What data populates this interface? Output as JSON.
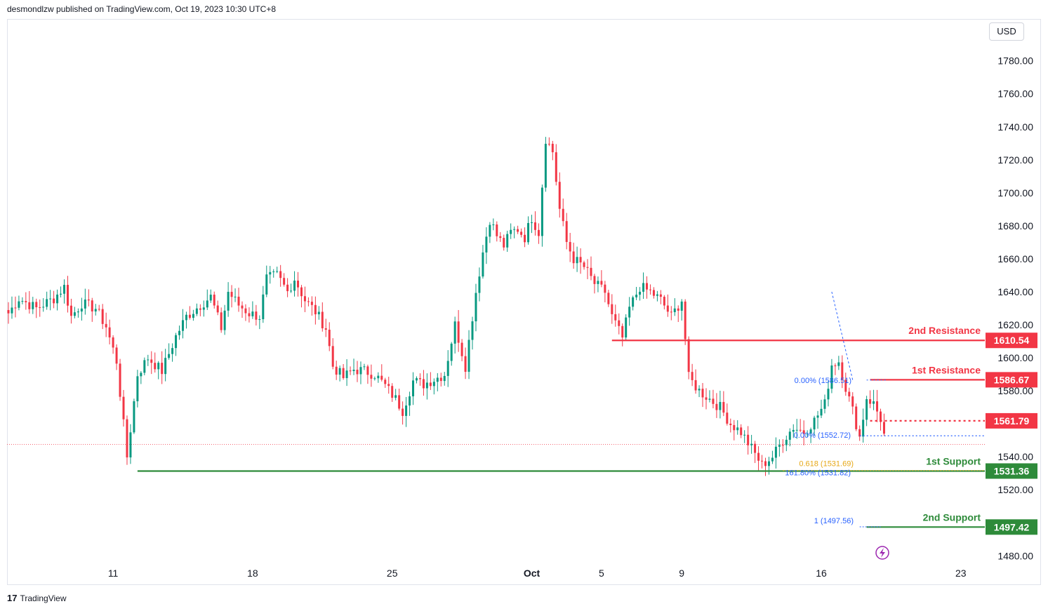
{
  "header": {
    "published": "desmondlzw published on TradingView.com, Oct 19, 2023 10:30 UTC+8"
  },
  "currency_button": "USD",
  "footer": {
    "brand": "TradingView",
    "logo_glyph": "17"
  },
  "colors": {
    "up": "#089981",
    "down": "#f23645",
    "resistance": "#f23645",
    "support": "#2e8b3a",
    "fib": "#2962ff",
    "fib_gold": "#e6a817"
  },
  "chart_data": {
    "type": "candlestick",
    "ylim": [
      1475,
      1800
    ],
    "y_ticks": [
      "1780.00",
      "1760.00",
      "1740.00",
      "1720.00",
      "1700.00",
      "1680.00",
      "1660.00",
      "1640.00",
      "1620.00",
      "1600.00",
      "1580.00",
      "1540.00",
      "1520.00",
      "1480.00"
    ],
    "y_tick_values": [
      1780,
      1760,
      1740,
      1720,
      1700,
      1680,
      1660,
      1640,
      1620,
      1600,
      1580,
      1540,
      1520,
      1480
    ],
    "x_ticks": [
      {
        "label": "11",
        "bar": 30
      },
      {
        "label": "18",
        "bar": 70
      },
      {
        "label": "25",
        "bar": 110
      },
      {
        "label": "Oct",
        "bar": 150
      },
      {
        "label": "5",
        "bar": 170
      },
      {
        "label": "9",
        "bar": 193
      },
      {
        "label": "16",
        "bar": 233
      },
      {
        "label": "23",
        "bar": 273
      }
    ],
    "levels": [
      {
        "name": "2nd Resistance",
        "value": 1610.54,
        "label": "1610.54",
        "kind": "resistance",
        "style": "solid",
        "from_bar": 173
      },
      {
        "name": "1st Resistance",
        "value": 1586.67,
        "label": "1586.67",
        "kind": "resistance",
        "style": "solid",
        "from_bar": 247
      },
      {
        "name": "",
        "value": 1561.79,
        "label": "1561.79",
        "kind": "resistance",
        "style": "dotted",
        "from_bar": 247
      },
      {
        "name": "1st Support",
        "value": 1531.36,
        "label": "1531.36",
        "kind": "support",
        "style": "solid",
        "from_bar": 37
      },
      {
        "name": "2nd Support",
        "value": 1497.42,
        "label": "1497.42",
        "kind": "support",
        "style": "solid",
        "from_bar": 246
      }
    ],
    "fib_labels": [
      {
        "text": "0.00% (1586.51)",
        "value": 1586.51,
        "color": "fib"
      },
      {
        "text": "0.00% (1552.72)",
        "value": 1552.72,
        "color": "fib"
      },
      {
        "text": "0.618 (1531.69)",
        "value": 1531.69,
        "color": "fib_gold"
      },
      {
        "text": "161.80% (1531.82)",
        "value": 1531.82,
        "color": "fib"
      },
      {
        "text": "1 (1497.56)",
        "value": 1497.56,
        "color": "fib"
      }
    ],
    "current_price": 1547.5,
    "anchors": [
      [
        0,
        1627
      ],
      [
        3,
        1636
      ],
      [
        8,
        1630
      ],
      [
        13,
        1636
      ],
      [
        16,
        1643
      ],
      [
        18,
        1625
      ],
      [
        21,
        1633
      ],
      [
        25,
        1630
      ],
      [
        28,
        1619
      ],
      [
        31,
        1598
      ],
      [
        34,
        1540
      ],
      [
        37,
        1590
      ],
      [
        40,
        1600
      ],
      [
        44,
        1592
      ],
      [
        48,
        1613
      ],
      [
        51,
        1625
      ],
      [
        55,
        1632
      ],
      [
        58,
        1637
      ],
      [
        61,
        1618
      ],
      [
        63,
        1640
      ],
      [
        66,
        1632
      ],
      [
        69,
        1627
      ],
      [
        72,
        1625
      ],
      [
        74,
        1648
      ],
      [
        77,
        1650
      ],
      [
        80,
        1640
      ],
      [
        82,
        1648
      ],
      [
        85,
        1635
      ],
      [
        88,
        1628
      ],
      [
        91,
        1618
      ],
      [
        93,
        1595
      ],
      [
        96,
        1588
      ],
      [
        99,
        1593
      ],
      [
        102,
        1592
      ],
      [
        105,
        1590
      ],
      [
        108,
        1583
      ],
      [
        111,
        1575
      ],
      [
        113,
        1568
      ],
      [
        116,
        1586
      ],
      [
        119,
        1584
      ],
      [
        122,
        1587
      ],
      [
        125,
        1590
      ],
      [
        128,
        1620
      ],
      [
        131,
        1595
      ],
      [
        134,
        1640
      ],
      [
        136,
        1664
      ],
      [
        138,
        1684
      ],
      [
        140,
        1674
      ],
      [
        142,
        1668
      ],
      [
        144,
        1676
      ],
      [
        146,
        1678
      ],
      [
        148,
        1673
      ],
      [
        150,
        1685
      ],
      [
        152,
        1676
      ],
      [
        154,
        1733
      ],
      [
        156,
        1725
      ],
      [
        158,
        1690
      ],
      [
        160,
        1670
      ],
      [
        162,
        1660
      ],
      [
        165,
        1655
      ],
      [
        168,
        1645
      ],
      [
        171,
        1640
      ],
      [
        173,
        1625
      ],
      [
        176,
        1612
      ],
      [
        178,
        1630
      ],
      [
        181,
        1643
      ],
      [
        184,
        1640
      ],
      [
        187,
        1635
      ],
      [
        190,
        1625
      ],
      [
        193,
        1635
      ],
      [
        195,
        1588
      ],
      [
        198,
        1580
      ],
      [
        201,
        1575
      ],
      [
        204,
        1570
      ],
      [
        207,
        1560
      ],
      [
        210,
        1555
      ],
      [
        213,
        1545
      ],
      [
        216,
        1535
      ],
      [
        219,
        1540
      ],
      [
        222,
        1550
      ],
      [
        225,
        1558
      ],
      [
        228,
        1555
      ],
      [
        231,
        1562
      ],
      [
        234,
        1572
      ],
      [
        236,
        1596
      ],
      [
        238,
        1598
      ],
      [
        240,
        1582
      ],
      [
        242,
        1568
      ],
      [
        244,
        1552
      ],
      [
        246,
        1576
      ],
      [
        248,
        1572
      ],
      [
        250,
        1563
      ],
      [
        251,
        1554
      ]
    ]
  }
}
